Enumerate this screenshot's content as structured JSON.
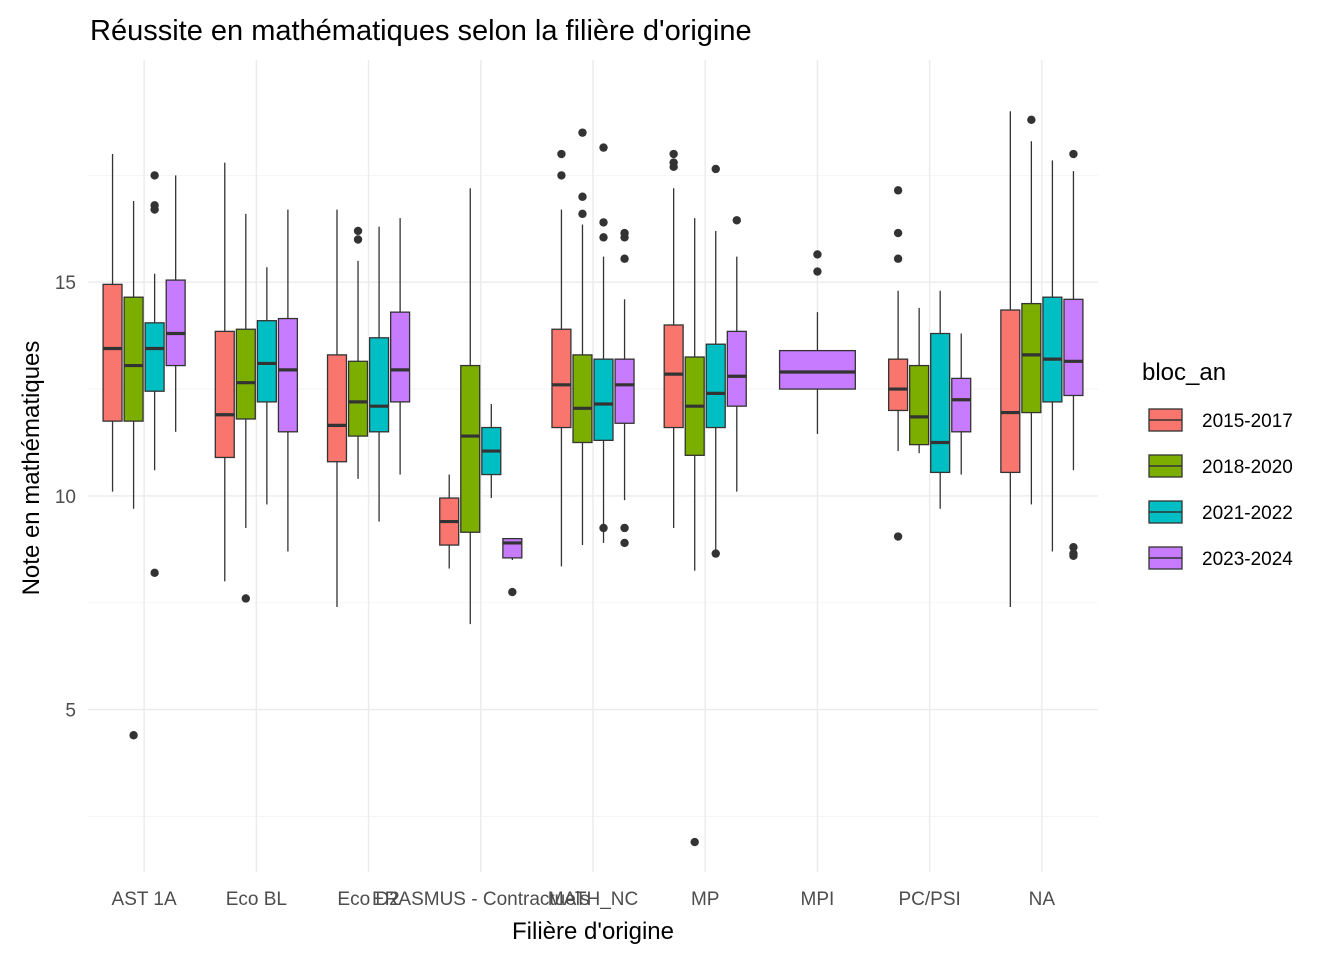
{
  "chart_data": {
    "type": "boxplot",
    "title": "Réussite en mathématiques selon la filière d'origine",
    "xlabel": "Filière d'origine",
    "ylabel": "Note en mathématiques",
    "ylim": [
      1.2,
      20.2
    ],
    "yticks": [
      5,
      10,
      15
    ],
    "grid": true,
    "legend": {
      "title": "bloc_an",
      "position": "right",
      "entries": [
        {
          "label": "2015-2017",
          "color": "#F8766D"
        },
        {
          "label": "2018-2020",
          "color": "#7CAE00"
        },
        {
          "label": "2021-2022",
          "color": "#00BFC4"
        },
        {
          "label": "2023-2024",
          "color": "#C77CFF"
        }
      ]
    },
    "categories": [
      "AST 1A",
      "Eco BL",
      "Eco D2",
      "ERASMUS - Contractuels",
      "MATH_NC",
      "MP",
      "MPI",
      "PC/PSI",
      "NA"
    ],
    "groups": [
      {
        "category": "AST 1A",
        "boxes": [
          {
            "series": "2015-2017",
            "min": 10.1,
            "q1": 11.75,
            "median": 13.45,
            "q3": 14.95,
            "max": 18.0,
            "outliers": []
          },
          {
            "series": "2018-2020",
            "min": 9.7,
            "q1": 11.75,
            "median": 13.05,
            "q3": 14.65,
            "max": 16.9,
            "outliers": [
              4.4
            ]
          },
          {
            "series": "2021-2022",
            "min": 10.6,
            "q1": 12.45,
            "median": 13.45,
            "q3": 14.05,
            "max": 15.2,
            "outliers": [
              17.5,
              16.8,
              16.7,
              8.2
            ]
          },
          {
            "series": "2023-2024",
            "min": 11.5,
            "q1": 13.05,
            "median": 13.8,
            "q3": 15.05,
            "max": 17.5,
            "outliers": []
          }
        ]
      },
      {
        "category": "Eco BL",
        "boxes": [
          {
            "series": "2015-2017",
            "min": 8.0,
            "q1": 10.9,
            "median": 11.9,
            "q3": 13.85,
            "max": 17.8,
            "outliers": []
          },
          {
            "series": "2018-2020",
            "min": 9.25,
            "q1": 11.8,
            "median": 12.65,
            "q3": 13.9,
            "max": 16.6,
            "outliers": [
              7.6
            ]
          },
          {
            "series": "2021-2022",
            "min": 9.8,
            "q1": 12.2,
            "median": 13.1,
            "q3": 14.1,
            "max": 15.35,
            "outliers": []
          },
          {
            "series": "2023-2024",
            "min": 8.7,
            "q1": 11.5,
            "median": 12.95,
            "q3": 14.15,
            "max": 16.7,
            "outliers": []
          }
        ]
      },
      {
        "category": "Eco D2",
        "boxes": [
          {
            "series": "2015-2017",
            "min": 7.4,
            "q1": 10.8,
            "median": 11.65,
            "q3": 13.3,
            "max": 16.7,
            "outliers": []
          },
          {
            "series": "2018-2020",
            "min": 10.4,
            "q1": 11.4,
            "median": 12.2,
            "q3": 13.15,
            "max": 15.5,
            "outliers": [
              16.2,
              16.0
            ]
          },
          {
            "series": "2021-2022",
            "min": 9.4,
            "q1": 11.5,
            "median": 12.1,
            "q3": 13.7,
            "max": 16.3,
            "outliers": []
          },
          {
            "series": "2023-2024",
            "min": 10.5,
            "q1": 12.2,
            "median": 12.95,
            "q3": 14.3,
            "max": 16.5,
            "outliers": []
          }
        ]
      },
      {
        "category": "ERASMUS - Contractuels",
        "boxes": [
          {
            "series": "2015-2017",
            "min": 8.3,
            "q1": 8.85,
            "median": 9.4,
            "q3": 9.95,
            "max": 10.5,
            "outliers": []
          },
          {
            "series": "2018-2020",
            "min": 7.0,
            "q1": 9.15,
            "median": 11.4,
            "q3": 13.05,
            "max": 17.2,
            "outliers": []
          },
          {
            "series": "2021-2022",
            "min": 9.95,
            "q1": 10.5,
            "median": 11.05,
            "q3": 11.6,
            "max": 12.15,
            "outliers": []
          },
          {
            "series": "2023-2024",
            "min": 8.5,
            "q1": 8.55,
            "median": 8.9,
            "q3": 9.0,
            "max": 9.0,
            "outliers": [
              7.75
            ]
          }
        ]
      },
      {
        "category": "MATH_NC",
        "boxes": [
          {
            "series": "2015-2017",
            "min": 8.35,
            "q1": 11.6,
            "median": 12.6,
            "q3": 13.9,
            "max": 16.7,
            "outliers": [
              18.0,
              17.5
            ]
          },
          {
            "series": "2018-2020",
            "min": 8.85,
            "q1": 11.25,
            "median": 12.05,
            "q3": 13.3,
            "max": 16.35,
            "outliers": [
              18.5,
              17.0,
              16.6
            ]
          },
          {
            "series": "2021-2022",
            "min": 8.9,
            "q1": 11.3,
            "median": 12.15,
            "q3": 13.2,
            "max": 15.6,
            "outliers": [
              18.15,
              16.4,
              16.05,
              9.25
            ]
          },
          {
            "series": "2023-2024",
            "min": 9.9,
            "q1": 11.7,
            "median": 12.6,
            "q3": 13.2,
            "max": 14.6,
            "outliers": [
              16.15,
              16.05,
              15.55,
              9.25,
              8.9
            ]
          }
        ]
      },
      {
        "category": "MP",
        "boxes": [
          {
            "series": "2015-2017",
            "min": 9.25,
            "q1": 11.6,
            "median": 12.85,
            "q3": 14.0,
            "max": 17.2,
            "outliers": [
              18.0,
              17.8,
              17.7
            ]
          },
          {
            "series": "2018-2020",
            "min": 8.25,
            "q1": 10.95,
            "median": 12.1,
            "q3": 13.25,
            "max": 16.5,
            "outliers": [
              1.9
            ]
          },
          {
            "series": "2021-2022",
            "min": 8.7,
            "q1": 11.6,
            "median": 12.4,
            "q3": 13.55,
            "max": 16.2,
            "outliers": [
              17.65,
              8.65
            ]
          },
          {
            "series": "2023-2024",
            "min": 10.1,
            "q1": 12.1,
            "median": 12.8,
            "q3": 13.85,
            "max": 15.6,
            "outliers": [
              16.45
            ]
          }
        ]
      },
      {
        "category": "MPI",
        "boxes": [
          {
            "series": "2023-2024",
            "min": 11.45,
            "q1": 12.5,
            "median": 12.9,
            "q3": 13.4,
            "max": 14.3,
            "outliers": [
              15.65,
              15.25
            ]
          }
        ]
      },
      {
        "category": "PC/PSI",
        "boxes": [
          {
            "series": "2015-2017",
            "min": 11.05,
            "q1": 12.0,
            "median": 12.5,
            "q3": 13.2,
            "max": 14.8,
            "outliers": [
              17.15,
              16.15,
              15.55,
              9.05
            ]
          },
          {
            "series": "2018-2020",
            "min": 11.0,
            "q1": 11.2,
            "median": 11.85,
            "q3": 13.05,
            "max": 14.4,
            "outliers": []
          },
          {
            "series": "2021-2022",
            "min": 9.7,
            "q1": 10.55,
            "median": 11.25,
            "q3": 13.8,
            "max": 14.8,
            "outliers": []
          },
          {
            "series": "2023-2024",
            "min": 10.5,
            "q1": 11.5,
            "median": 12.25,
            "q3": 12.75,
            "max": 13.8,
            "outliers": []
          }
        ]
      },
      {
        "category": "NA",
        "boxes": [
          {
            "series": "2015-2017",
            "min": 7.4,
            "q1": 10.55,
            "median": 11.95,
            "q3": 14.35,
            "max": 19.0,
            "outliers": []
          },
          {
            "series": "2018-2020",
            "min": 9.8,
            "q1": 11.95,
            "median": 13.3,
            "q3": 14.5,
            "max": 18.3,
            "outliers": [
              18.8
            ]
          },
          {
            "series": "2021-2022",
            "min": 8.7,
            "q1": 12.2,
            "median": 13.2,
            "q3": 14.65,
            "max": 17.85,
            "outliers": []
          },
          {
            "series": "2023-2024",
            "min": 10.6,
            "q1": 12.35,
            "median": 13.15,
            "q3": 14.6,
            "max": 17.6,
            "outliers": [
              18.0,
              8.8,
              8.65,
              8.6
            ]
          }
        ]
      }
    ]
  }
}
